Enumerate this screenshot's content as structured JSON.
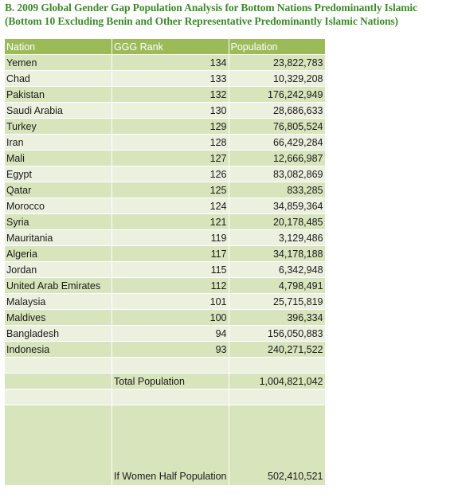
{
  "title": {
    "line1": "B. 2009 Global Gender Gap Population Analysis for Bottom Nations Predominantly Islamic",
    "line2": "(Bottom 10 Excluding Benin and Other Representative Predominantly Islamic Nations)"
  },
  "headers": {
    "nation": "Nation",
    "rank": "GGG Rank",
    "population": "Population"
  },
  "rows": [
    {
      "nation": "Yemen",
      "rank": "134",
      "population": "23,822,783"
    },
    {
      "nation": "Chad",
      "rank": "133",
      "population": "10,329,208"
    },
    {
      "nation": "Pakistan",
      "rank": "132",
      "population": "176,242,949"
    },
    {
      "nation": "Saudi Arabia",
      "rank": "130",
      "population": "28,686,633"
    },
    {
      "nation": "Turkey",
      "rank": "129",
      "population": "76,805,524"
    },
    {
      "nation": "Iran",
      "rank": "128",
      "population": "66,429,284"
    },
    {
      "nation": "Mali",
      "rank": "127",
      "population": "12,666,987"
    },
    {
      "nation": "Egypt",
      "rank": "126",
      "population": "83,082,869"
    },
    {
      "nation": "Qatar",
      "rank": "125",
      "population": "833,285"
    },
    {
      "nation": "Morocco",
      "rank": "124",
      "population": "34,859,364"
    },
    {
      "nation": "Syria",
      "rank": "121",
      "population": "20,178,485"
    },
    {
      "nation": "Mauritania",
      "rank": "119",
      "population": "3,129,486"
    },
    {
      "nation": "Algeria",
      "rank": "117",
      "population": "34,178,188"
    },
    {
      "nation": "Jordan",
      "rank": "115",
      "population": "6,342,948"
    },
    {
      "nation": "United Arab Emirates",
      "rank": "112",
      "population": "4,798,491"
    },
    {
      "nation": "Malaysia",
      "rank": "101",
      "population": "25,715,819"
    },
    {
      "nation": "Maldives",
      "rank": "100",
      "population": "396,334"
    },
    {
      "nation": "Bangladesh",
      "rank": "94",
      "population": "156,050,883"
    },
    {
      "nation": "Indonesia",
      "rank": "93",
      "population": "240,271,522"
    }
  ],
  "total": {
    "label": "Total Population",
    "value": "1,004,821,042"
  },
  "half": {
    "label": "If Women Half Population",
    "value": "502,410,521"
  },
  "colors": {
    "title": "#3e8a2a",
    "header": "#9bbb59",
    "band_dark": "#d8e4bc",
    "band_light": "#ebf1de"
  }
}
